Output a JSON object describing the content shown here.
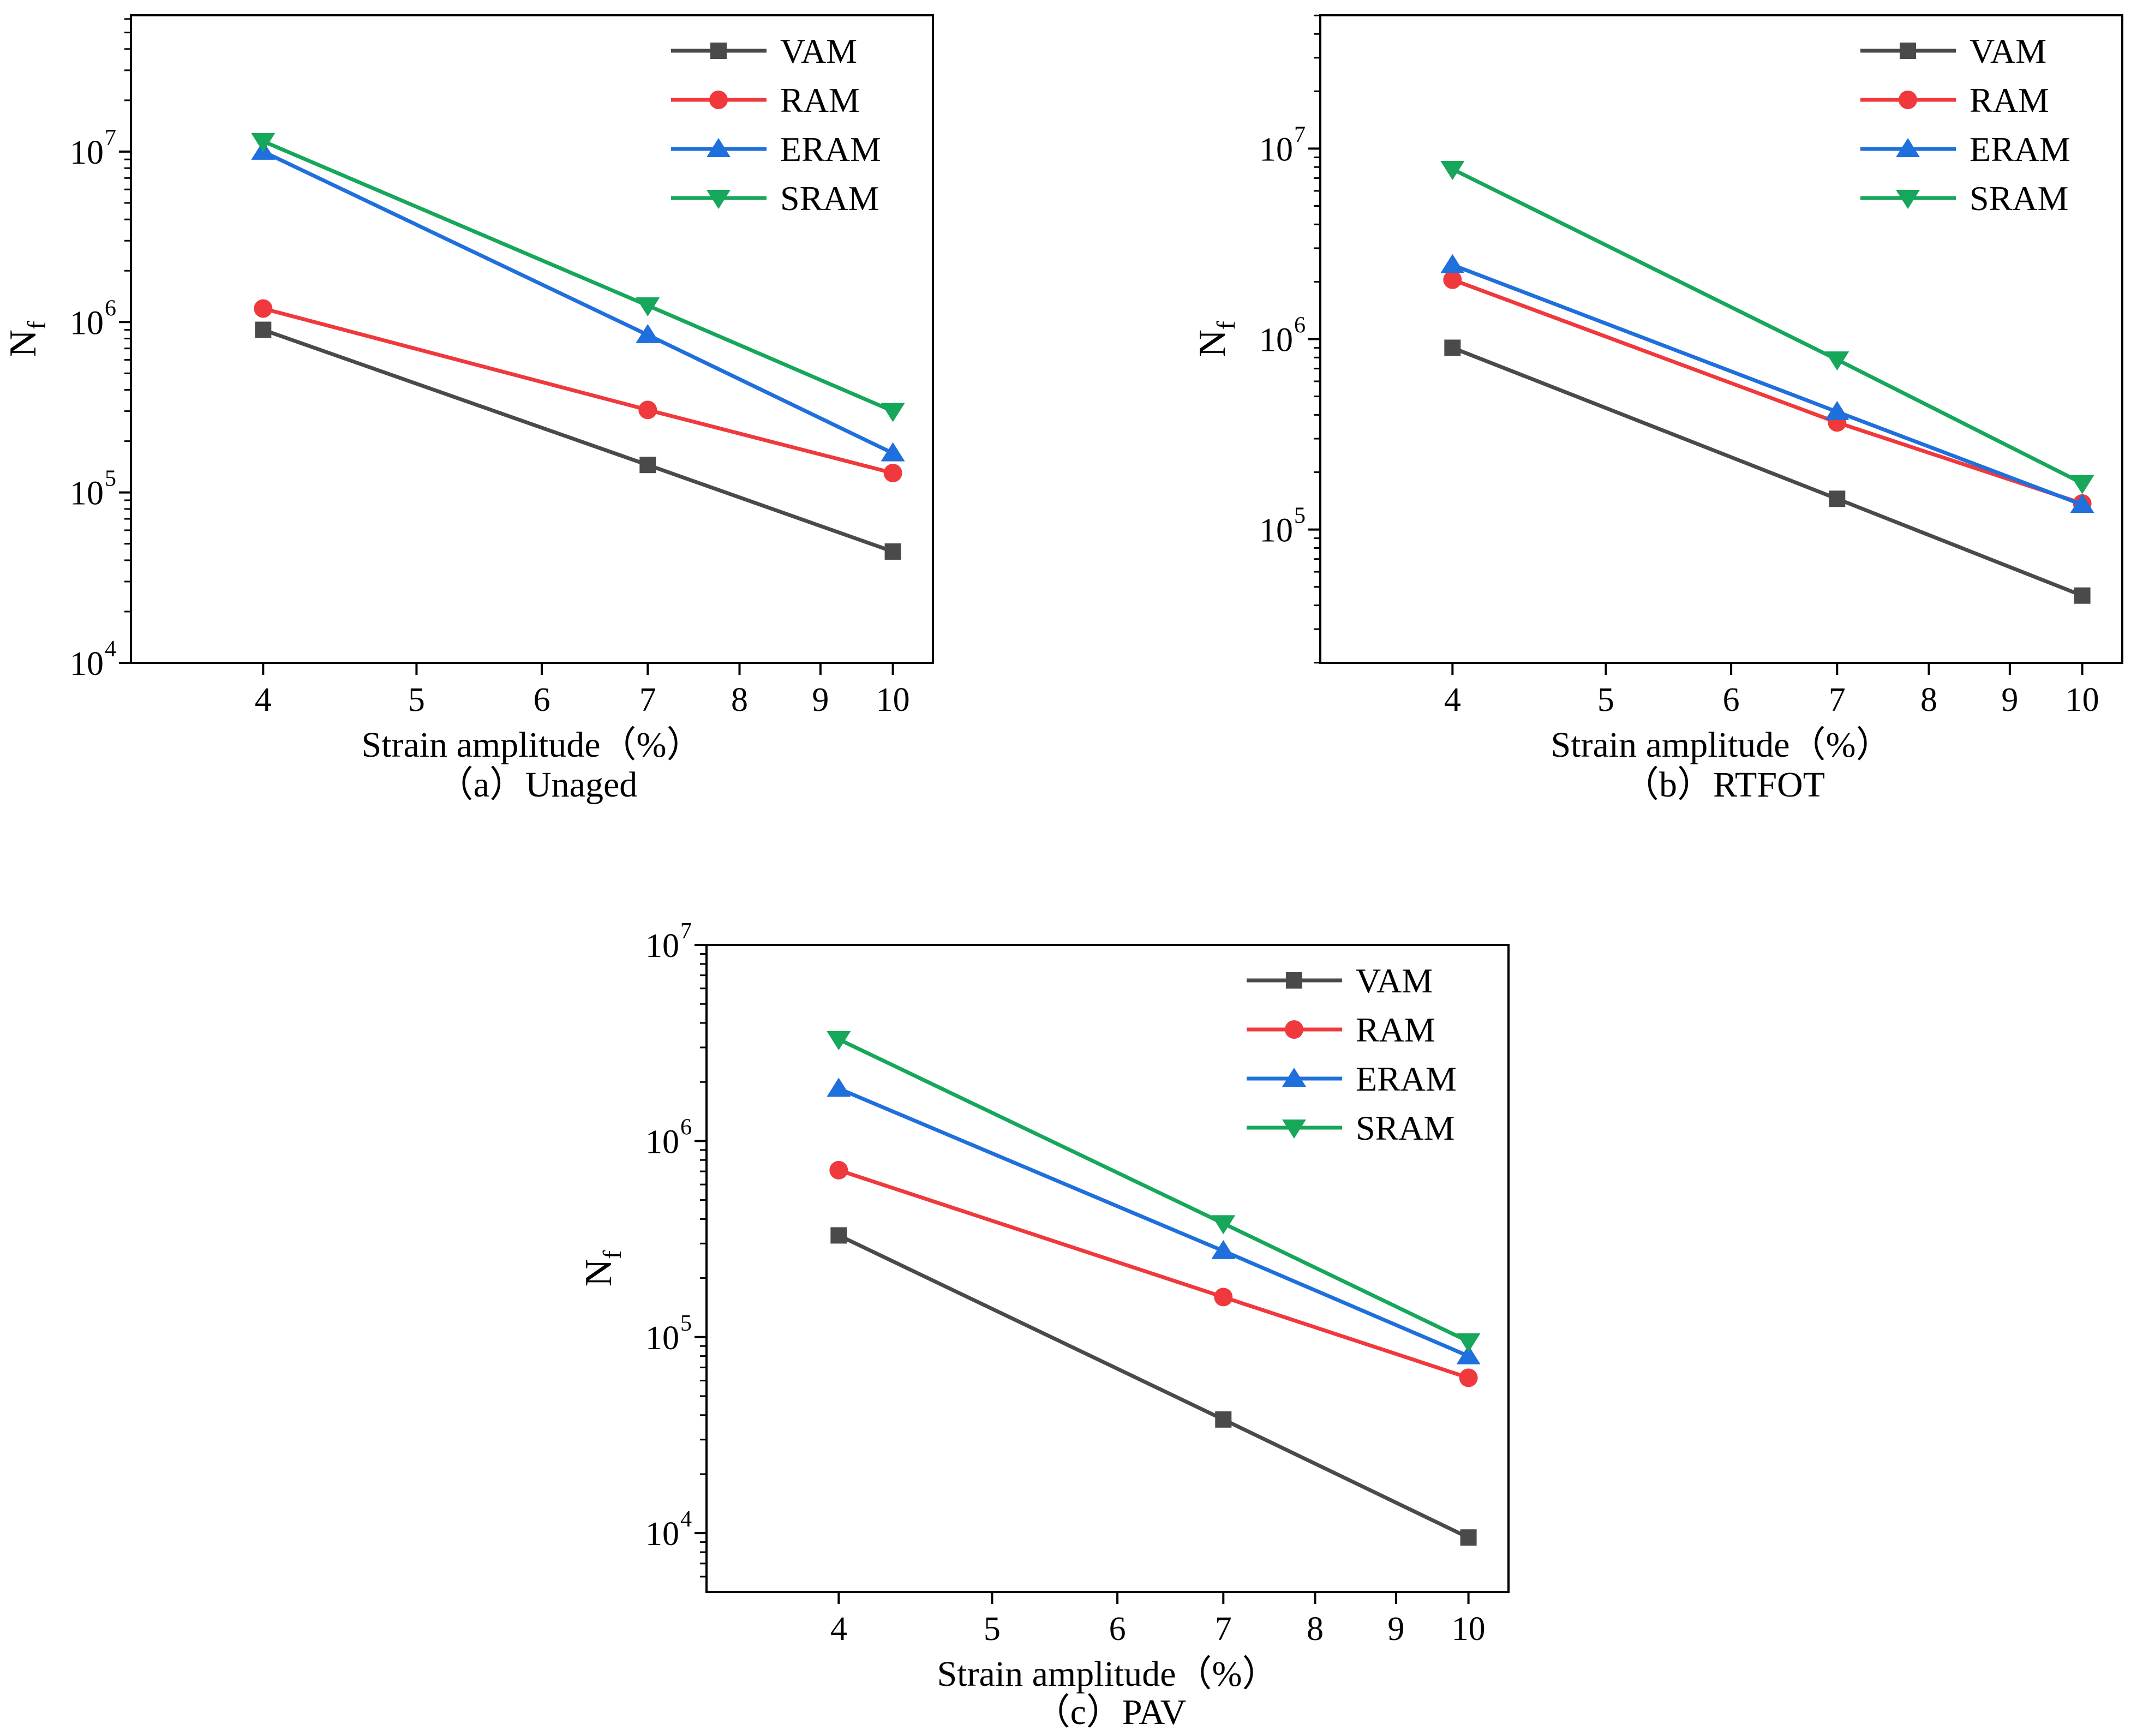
{
  "colors": {
    "VAM": "#4a4a4a",
    "RAM": "#f0393c",
    "ERAM": "#1f6fdc",
    "SRAM": "#16a75a",
    "axis": "#000000"
  },
  "chart_data": [
    {
      "type": "line",
      "panel_label": "（a）Unaged",
      "xlabel": "Strain amplitude（%）",
      "ylabel_main": "N",
      "ylabel_sub": "f",
      "xscale": "log",
      "yscale": "log",
      "xlim": [
        3.3,
        10.6
      ],
      "ylim_exp": [
        4,
        7.8
      ],
      "xticks": [
        4,
        5,
        6,
        7,
        8,
        9,
        10
      ],
      "yticks_exp": [
        4,
        5,
        6,
        7
      ],
      "legend_position": "top-right",
      "x": [
        4,
        7,
        10
      ],
      "series": [
        {
          "name": "VAM",
          "marker": "square",
          "values": [
            900000,
            145000,
            45000
          ]
        },
        {
          "name": "RAM",
          "marker": "circle",
          "values": [
            1200000,
            305000,
            130000
          ]
        },
        {
          "name": "ERAM",
          "marker": "triangle-up",
          "values": [
            10000000,
            840000,
            170000
          ]
        },
        {
          "name": "SRAM",
          "marker": "triangle-down",
          "values": [
            11500000,
            1250000,
            300000
          ]
        }
      ]
    },
    {
      "type": "line",
      "panel_label": "（b）RTFOT",
      "xlabel": "Strain amplitude（%）",
      "ylabel_main": "N",
      "ylabel_sub": "f",
      "xscale": "log",
      "yscale": "log",
      "xlim": [
        3.3,
        10.6
      ],
      "ylim_exp": [
        4.3,
        7.7
      ],
      "xticks": [
        4,
        5,
        6,
        7,
        8,
        9,
        10
      ],
      "yticks_exp": [
        5,
        6,
        7
      ],
      "legend_position": "top-right",
      "x": [
        4,
        7,
        10
      ],
      "series": [
        {
          "name": "VAM",
          "marker": "square",
          "values": [
            900000,
            145000,
            45000
          ]
        },
        {
          "name": "RAM",
          "marker": "circle",
          "values": [
            2050000,
            365000,
            137000
          ]
        },
        {
          "name": "ERAM",
          "marker": "triangle-up",
          "values": [
            2450000,
            415000,
            135000
          ]
        },
        {
          "name": "SRAM",
          "marker": "triangle-down",
          "values": [
            7800000,
            780000,
            175000
          ]
        }
      ]
    },
    {
      "type": "line",
      "panel_label": "（c）PAV",
      "xlabel": "Strain amplitude（%）",
      "ylabel_main": "N",
      "ylabel_sub": "f",
      "xscale": "log",
      "yscale": "log",
      "xlim": [
        3.3,
        10.6
      ],
      "ylim_exp": [
        3.7,
        7.0
      ],
      "xticks": [
        4,
        5,
        6,
        7,
        8,
        9,
        10
      ],
      "yticks_exp": [
        4,
        5,
        6,
        7
      ],
      "legend_position": "top-right",
      "x": [
        4,
        7,
        10
      ],
      "series": [
        {
          "name": "VAM",
          "marker": "square",
          "values": [
            330000,
            38000,
            9500
          ]
        },
        {
          "name": "RAM",
          "marker": "circle",
          "values": [
            710000,
            160000,
            62000
          ]
        },
        {
          "name": "ERAM",
          "marker": "triangle-up",
          "values": [
            1850000,
            275000,
            80000
          ]
        },
        {
          "name": "SRAM",
          "marker": "triangle-down",
          "values": [
            3300000,
            380000,
            95000
          ]
        }
      ]
    }
  ]
}
